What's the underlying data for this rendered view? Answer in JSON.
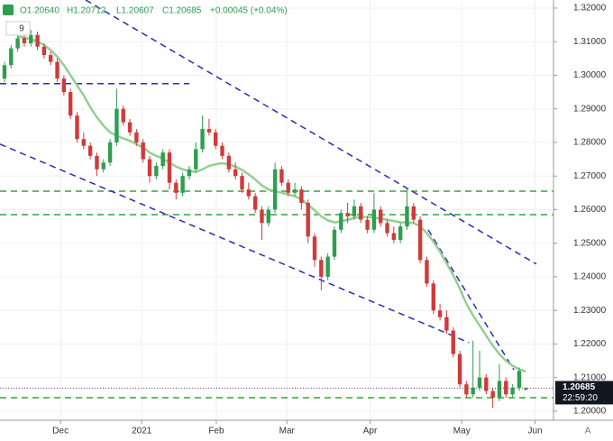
{
  "chart_data": {
    "type": "candlestick",
    "header": {
      "open": "O1.20640",
      "high": "H1.20712",
      "low": "L1.20607",
      "close": "C1.20685",
      "change": "+0.00045 (+0.04%)"
    },
    "badge": "9",
    "countdown": "22:59:20",
    "auto_scale_button": "A",
    "up_color": "#2e9e4f",
    "down_color": "#d03a3a",
    "open": [
      1.299,
      1.303,
      1.308,
      1.311,
      1.3095,
      1.312,
      1.3085,
      1.306,
      1.304,
      1.299,
      1.295,
      1.288,
      1.281,
      1.279,
      1.276,
      1.272,
      1.274,
      1.28,
      1.29,
      1.286,
      1.283,
      1.28,
      1.275,
      1.27,
      1.273,
      1.277,
      1.268,
      1.265,
      1.27,
      1.272,
      1.278,
      1.284,
      1.283,
      1.279,
      1.276,
      1.272,
      1.27,
      1.266,
      1.264,
      1.26,
      1.256,
      1.26,
      1.272,
      1.268,
      1.265,
      1.266,
      1.262,
      1.252,
      1.245,
      1.24,
      1.246,
      1.254,
      1.259,
      1.258,
      1.261,
      1.257,
      1.254,
      1.26,
      1.256,
      1.253,
      1.251,
      1.255,
      1.261,
      1.257,
      1.245,
      1.238,
      1.23,
      1.228,
      1.224,
      1.217,
      1.208,
      1.205,
      1.207,
      1.21,
      1.206,
      1.204,
      1.209,
      1.205,
      1.207,
      1.2064
    ],
    "high": [
      1.304,
      1.309,
      1.3125,
      1.312,
      1.3135,
      1.313,
      1.3095,
      1.307,
      1.305,
      1.3,
      1.296,
      1.289,
      1.283,
      1.28,
      1.277,
      1.275,
      1.281,
      1.296,
      1.291,
      1.287,
      1.284,
      1.281,
      1.276,
      1.274,
      1.278,
      1.278,
      1.269,
      1.271,
      1.273,
      1.28,
      1.288,
      1.287,
      1.284,
      1.28,
      1.277,
      1.274,
      1.271,
      1.268,
      1.265,
      1.261,
      1.261,
      1.274,
      1.273,
      1.269,
      1.268,
      1.267,
      1.263,
      1.253,
      1.246,
      1.247,
      1.255,
      1.26,
      1.262,
      1.263,
      1.262,
      1.258,
      1.265,
      1.261,
      1.257,
      1.255,
      1.256,
      1.266,
      1.262,
      1.258,
      1.246,
      1.239,
      1.232,
      1.23,
      1.225,
      1.218,
      1.209,
      1.221,
      1.218,
      1.211,
      1.207,
      1.214,
      1.21,
      1.208,
      1.213,
      1.20712
    ],
    "low": [
      1.298,
      1.302,
      1.307,
      1.3085,
      1.3085,
      1.3075,
      1.305,
      1.303,
      1.298,
      1.294,
      1.287,
      1.28,
      1.278,
      1.275,
      1.27,
      1.271,
      1.273,
      1.279,
      1.285,
      1.282,
      1.279,
      1.274,
      1.268,
      1.269,
      1.272,
      1.266,
      1.263,
      1.264,
      1.269,
      1.271,
      1.277,
      1.282,
      1.278,
      1.275,
      1.271,
      1.269,
      1.265,
      1.263,
      1.259,
      1.251,
      1.255,
      1.259,
      1.267,
      1.264,
      1.264,
      1.26,
      1.25,
      1.243,
      1.236,
      1.239,
      1.245,
      1.253,
      1.256,
      1.257,
      1.256,
      1.253,
      1.253,
      1.255,
      1.252,
      1.25,
      1.25,
      1.254,
      1.256,
      1.244,
      1.237,
      1.229,
      1.227,
      1.223,
      1.216,
      1.207,
      1.204,
      1.204,
      1.206,
      1.205,
      1.201,
      1.203,
      1.204,
      1.204,
      1.206,
      1.20607
    ],
    "close": [
      1.303,
      1.308,
      1.311,
      1.3095,
      1.312,
      1.3085,
      1.306,
      1.304,
      1.299,
      1.295,
      1.288,
      1.281,
      1.279,
      1.276,
      1.272,
      1.274,
      1.28,
      1.29,
      1.286,
      1.283,
      1.28,
      1.275,
      1.27,
      1.273,
      1.277,
      1.268,
      1.265,
      1.27,
      1.272,
      1.278,
      1.284,
      1.283,
      1.279,
      1.276,
      1.272,
      1.27,
      1.266,
      1.264,
      1.26,
      1.256,
      1.26,
      1.272,
      1.268,
      1.265,
      1.266,
      1.262,
      1.252,
      1.245,
      1.24,
      1.246,
      1.254,
      1.259,
      1.258,
      1.261,
      1.257,
      1.254,
      1.26,
      1.256,
      1.253,
      1.251,
      1.255,
      1.261,
      1.257,
      1.245,
      1.238,
      1.23,
      1.228,
      1.224,
      1.217,
      1.208,
      1.205,
      1.207,
      1.21,
      1.206,
      1.204,
      1.209,
      1.205,
      1.207,
      1.212,
      1.20685
    ],
    "moving_average": {
      "color": "#93cf93",
      "values": [
        null,
        null,
        1.3115,
        1.3112,
        1.3108,
        1.31,
        1.309,
        1.3075,
        1.3055,
        1.303,
        1.3,
        1.297,
        1.294,
        1.2905,
        1.2875,
        1.285,
        1.283,
        1.282,
        1.2812,
        1.2805,
        1.2795,
        1.2785,
        1.277,
        1.276,
        1.2752,
        1.274,
        1.2728,
        1.272,
        1.2715,
        1.2712,
        1.272,
        1.273,
        1.2735,
        1.2738,
        1.2735,
        1.2728,
        1.2718,
        1.2705,
        1.269,
        1.2672,
        1.266,
        1.2655,
        1.265,
        1.2645,
        1.264,
        1.263,
        1.2615,
        1.2598,
        1.258,
        1.2568,
        1.2562,
        1.2565,
        1.257,
        1.2575,
        1.2578,
        1.2578,
        1.2576,
        1.2574,
        1.257,
        1.2566,
        1.2562,
        1.2562,
        1.256,
        1.255,
        1.253,
        1.2505,
        1.2475,
        1.244,
        1.2405,
        1.2365,
        1.232,
        1.2285,
        1.2255,
        1.2225,
        1.2195,
        1.217,
        1.215,
        1.2135,
        1.2125,
        1.2118
      ]
    },
    "hlines": [
      {
        "value": 1.2655,
        "color": "#2ea82e"
      },
      {
        "value": 1.2585,
        "color": "#2ea82e"
      },
      {
        "value": 1.204,
        "color": "#2ea82e"
      }
    ],
    "trendlines": [
      {
        "x": [
          12.3,
          80.6
        ],
        "y": [
          1.3224,
          1.2438
        ],
        "color": "#2c2cb4"
      },
      {
        "x": [
          -0.68,
          70.4
        ],
        "y": [
          1.2795,
          1.2204
        ],
        "color": "#2c2cb4"
      },
      {
        "x": [
          -0.68,
          28.0
        ],
        "y": [
          1.2975,
          1.2975
        ],
        "color": "#2c2cb4"
      },
      {
        "x": [
          64.2,
          77.2
        ],
        "y": [
          1.254,
          1.2123
        ],
        "color": "#2c2cb4"
      }
    ],
    "xlim": [
      -0.68,
      83.2
    ],
    "xticks": [
      {
        "value": 8.5,
        "label": "Dec"
      },
      {
        "value": 20.8,
        "label": "2021"
      },
      {
        "value": 32.1,
        "label": "Feb"
      },
      {
        "value": 42.8,
        "label": "Mar"
      },
      {
        "value": 55.4,
        "label": "Apr"
      },
      {
        "value": 69.3,
        "label": "May"
      },
      {
        "value": 80.4,
        "label": "Jun"
      }
    ],
    "ylim": [
      1.1973,
      1.3224
    ],
    "yticks": [
      {
        "value": 1.2,
        "label": "1.20000"
      },
      {
        "value": 1.21,
        "label": "1.21000"
      },
      {
        "value": 1.22,
        "label": "1.22000"
      },
      {
        "value": 1.23,
        "label": "1.23000"
      },
      {
        "value": 1.24,
        "label": "1.24000"
      },
      {
        "value": 1.25,
        "label": "1.25000"
      },
      {
        "value": 1.26,
        "label": "1.26000"
      },
      {
        "value": 1.27,
        "label": "1.27000"
      },
      {
        "value": 1.28,
        "label": "1.28000"
      },
      {
        "value": 1.29,
        "label": "1.29000"
      },
      {
        "value": 1.3,
        "label": "1.30000"
      },
      {
        "value": 1.31,
        "label": "1.31000"
      },
      {
        "value": 1.32,
        "label": "1.32000"
      }
    ],
    "grid": true
  }
}
